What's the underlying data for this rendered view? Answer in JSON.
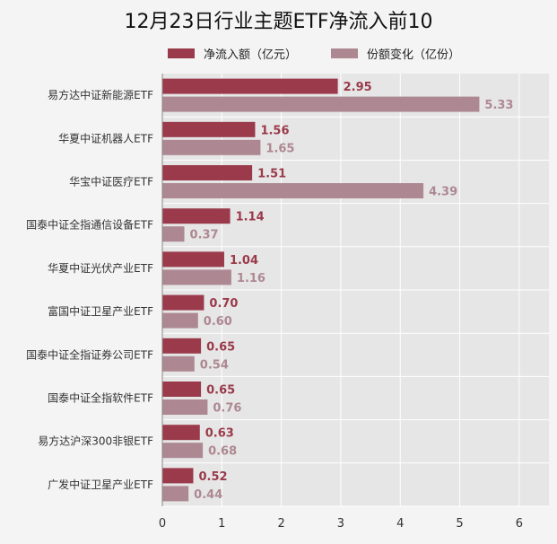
{
  "colors": {
    "net_inflow": "#9a3a4a",
    "share_change": "#ad8892",
    "plot_bg": "#e6e6e6",
    "grid": "#ffffff"
  },
  "chart_data": {
    "type": "bar",
    "orientation": "horizontal",
    "title": "12月23日行业主题ETF净流入前10",
    "categories": [
      "易方达中证新能源ETF",
      "华夏中证机器人ETF",
      "华宝中证医疗ETF",
      "国泰中证全指通信设备ETF",
      "华夏中证光伏产业ETF",
      "富国中证卫星产业ETF",
      "国泰中证全指证券公司ETF",
      "国泰中证全指软件ETF",
      "易方达沪深300非银ETF",
      "广发中证卫星产业ETF"
    ],
    "series": [
      {
        "name": "净流入额（亿元）",
        "values": [
          2.95,
          1.56,
          1.51,
          1.14,
          1.04,
          0.7,
          0.65,
          0.65,
          0.63,
          0.52
        ],
        "labels": [
          "2.95",
          "1.56",
          "1.51",
          "1.14",
          "1.04",
          "0.70",
          "0.65",
          "0.65",
          "0.63",
          "0.52"
        ]
      },
      {
        "name": "份额变化（亿份）",
        "values": [
          5.33,
          1.65,
          4.39,
          0.37,
          1.16,
          0.6,
          0.54,
          0.76,
          0.68,
          0.44
        ],
        "labels": [
          "5.33",
          "1.65",
          "4.39",
          "0.37",
          "1.16",
          "0.60",
          "0.54",
          "0.76",
          "0.68",
          "0.44"
        ]
      }
    ],
    "xlim": [
      0,
      6.5
    ],
    "xticks": [
      "0",
      "1",
      "2",
      "3",
      "4",
      "5",
      "6"
    ],
    "grid": true,
    "legend_position": "top"
  }
}
